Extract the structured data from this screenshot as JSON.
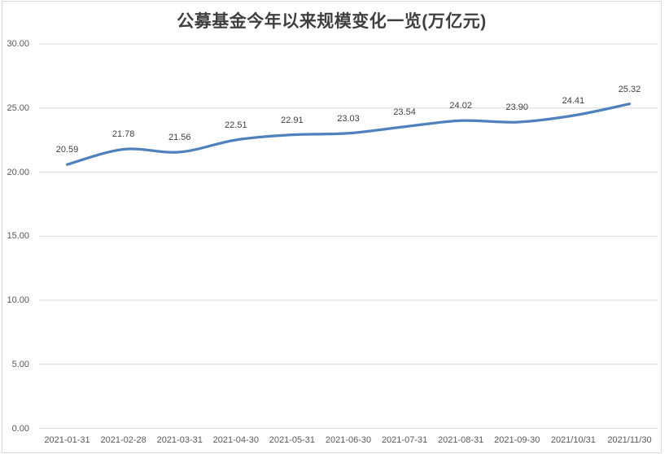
{
  "chart_data": {
    "type": "line",
    "title": "公募基金今年以来规模变化一览(万亿元)",
    "categories": [
      "2021-01-31",
      "2021-02-28",
      "2021-03-31",
      "2021-04-30",
      "2021-05-31",
      "2021-06-30",
      "2021-07-31",
      "2021-08-31",
      "2021-09-30",
      "2021/10/31",
      "2021/11/30"
    ],
    "values": [
      20.59,
      21.78,
      21.56,
      22.51,
      22.91,
      23.03,
      23.54,
      24.02,
      23.9,
      24.41,
      25.32
    ],
    "data_labels": [
      "20.59",
      "21.78",
      "21.56",
      "22.51",
      "22.91",
      "23.03",
      "23.54",
      "24.02",
      "23.90",
      "24.41",
      "25.32"
    ],
    "xlabel": "",
    "ylabel": "",
    "ylim": [
      0,
      30
    ],
    "y_ticks": [
      0,
      5,
      10,
      15,
      20,
      25,
      30
    ],
    "y_tick_labels": [
      "0.00",
      "5.00",
      "10.00",
      "15.00",
      "20.00",
      "25.00",
      "30.00"
    ],
    "grid": "horizontal",
    "legend": "none",
    "smoothed": true
  },
  "style": {
    "line_color": "#4f81bd",
    "grid_color": "#d9d9d9",
    "frame_border_color": "#d9d9d9",
    "axis_label_color": "#595959",
    "data_label_color": "#404040",
    "title_color": "#3f3f3f",
    "background": "#ffffff"
  }
}
